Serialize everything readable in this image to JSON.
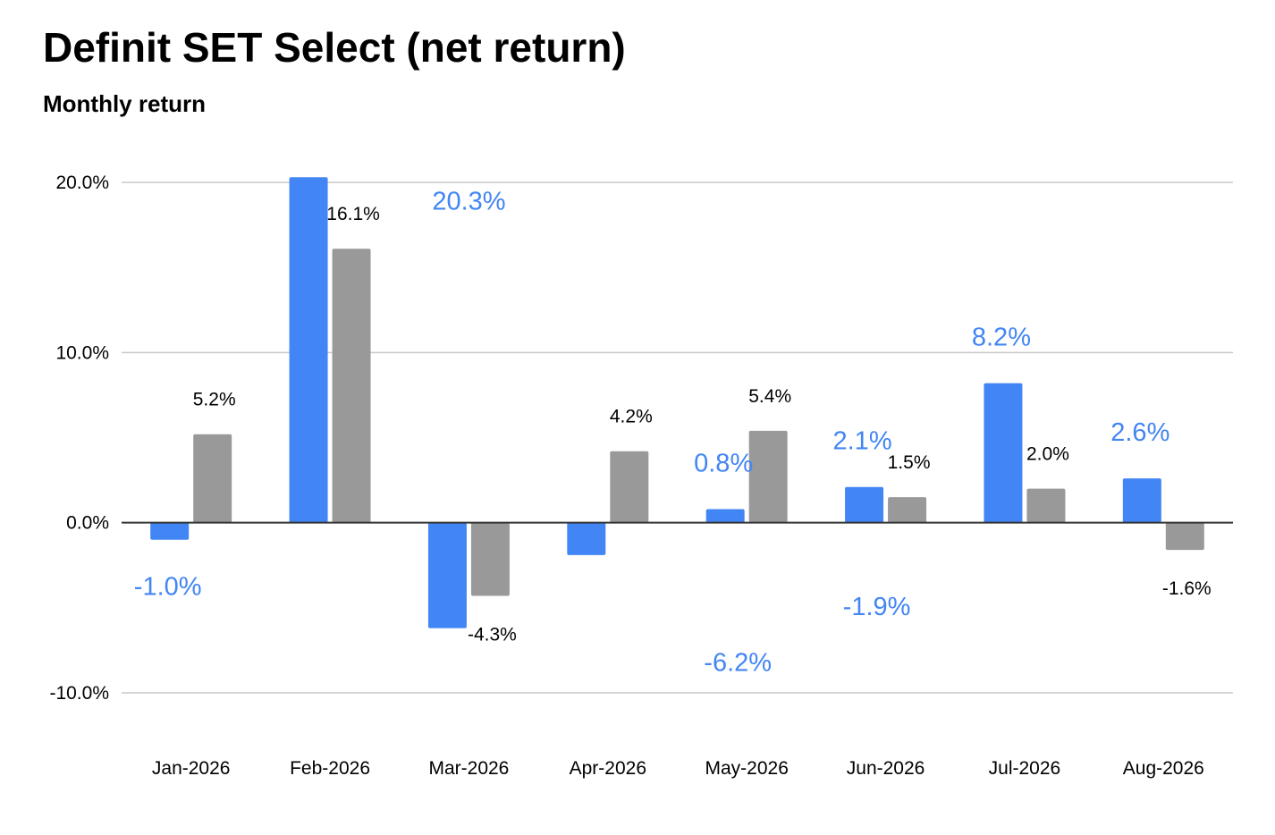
{
  "colors": {
    "series_a": "#4285f4",
    "series_b": "#999999",
    "grid": "#c8c8c8",
    "baseline": "#333333"
  },
  "chart_data": {
    "type": "bar",
    "title": "Definit SET Select (net return)",
    "subtitle": "Monthly return",
    "xlabel": "",
    "ylabel": "",
    "ylim": [
      -10,
      20
    ],
    "yticks": [
      "20.0%",
      "10.0%",
      "0.0%",
      "-10.0%"
    ],
    "ytick_values": [
      20,
      10,
      0,
      -10
    ],
    "grid": true,
    "legend": "none",
    "categories": [
      "Jan-2026",
      "Feb-2026",
      "Mar-2026",
      "Apr-2026",
      "May-2026",
      "Jun-2026",
      "Jul-2026",
      "Aug-2026"
    ],
    "series": [
      {
        "values": [
          -1.0,
          20.3,
          -6.2,
          -1.9,
          0.8,
          2.1,
          8.2,
          2.6
        ],
        "labels": [
          "-1.0%",
          "20.3%",
          "-6.2%",
          "-1.9%",
          "0.8%",
          "2.1%",
          "8.2%",
          "2.6%"
        ]
      },
      {
        "values": [
          5.2,
          16.1,
          -4.3,
          4.2,
          5.4,
          1.5,
          2.0,
          -1.6
        ],
        "labels": [
          "5.2%",
          "16.1%",
          "-4.3%",
          "4.2%",
          "5.4%",
          "1.5%",
          "2.0%",
          "-1.6%"
        ]
      }
    ]
  }
}
